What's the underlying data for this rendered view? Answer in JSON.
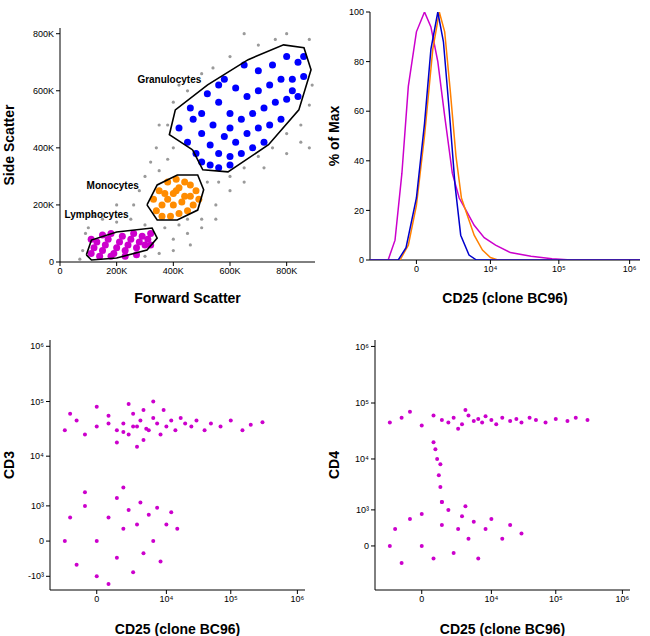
{
  "chart_data": [
    {
      "type": "scatter",
      "x_label": "Forward Scatter",
      "y_label": "Side Scatter",
      "xlim": [
        0,
        900000
      ],
      "ylim": [
        0,
        820000
      ],
      "xticks": [
        0,
        {
          "value": 200000,
          "label": "200K"
        },
        {
          "value": 400000,
          "label": "400K"
        },
        {
          "value": 600000,
          "label": "600K"
        },
        {
          "value": 800000,
          "label": "800K"
        }
      ],
      "yticks": [
        0,
        {
          "value": 200000,
          "label": "200K"
        },
        {
          "value": 400000,
          "label": "400K"
        },
        {
          "value": 600000,
          "label": "600K"
        },
        {
          "value": 800000,
          "label": "800K"
        }
      ],
      "series": [
        {
          "color": "#9a9a9a",
          "x": [
            70000,
            80000,
            100000,
            150000,
            200000,
            250000,
            260000,
            280000,
            300000,
            320000,
            350000,
            380000,
            400000,
            300000,
            370000,
            420000,
            450000,
            500000,
            550000,
            520000,
            560000,
            600000,
            650000,
            700000,
            750000,
            800000,
            850000,
            880000,
            890000,
            880000,
            800000,
            700000,
            600000,
            500000,
            450000,
            400000,
            350000,
            340000,
            380000,
            600000,
            650000,
            720000,
            800000,
            850000,
            200000,
            120000,
            90000,
            400000,
            450000,
            500000,
            550000,
            350000,
            400000,
            460000,
            540000,
            420000,
            880000,
            760000,
            650000,
            300000
          ],
          "y": [
            10000,
            40000,
            120000,
            150000,
            140000,
            150000,
            200000,
            250000,
            300000,
            350000,
            320000,
            360000,
            400000,
            130000,
            120000,
            130000,
            150000,
            150000,
            200000,
            280000,
            280000,
            300000,
            330000,
            370000,
            400000,
            450000,
            480000,
            550000,
            620000,
            780000,
            800000,
            760000,
            720000,
            660000,
            600000,
            560000,
            480000,
            400000,
            480000,
            250000,
            280000,
            330000,
            380000,
            420000,
            200000,
            160000,
            100000,
            80000,
            100000,
            120000,
            150000,
            30000,
            40000,
            60000,
            680000,
            620000,
            400000,
            780000,
            800000,
            20000
          ]
        },
        {
          "name": "Granulocytes",
          "color": "#0000ff",
          "x": [
            420000,
            450000,
            480000,
            500000,
            530000,
            560000,
            600000,
            470000,
            500000,
            530000,
            560000,
            600000,
            640000,
            680000,
            720000,
            460000,
            500000,
            540000,
            580000,
            620000,
            660000,
            700000,
            740000,
            780000,
            520000,
            560000,
            600000,
            640000,
            680000,
            720000,
            760000,
            800000,
            840000,
            580000,
            620000,
            660000,
            700000,
            740000,
            780000,
            820000,
            860000,
            650000,
            700000,
            750000,
            800000,
            840000,
            860000,
            600000,
            560000,
            820000
          ],
          "y": [
            470000,
            420000,
            380000,
            350000,
            340000,
            330000,
            340000,
            500000,
            450000,
            410000,
            380000,
            370000,
            380000,
            400000,
            420000,
            540000,
            520000,
            480000,
            440000,
            420000,
            450000,
            470000,
            480000,
            500000,
            590000,
            560000,
            520000,
            500000,
            520000,
            540000,
            560000,
            570000,
            580000,
            640000,
            610000,
            580000,
            600000,
            620000,
            640000,
            640000,
            650000,
            690000,
            670000,
            690000,
            720000,
            700000,
            720000,
            470000,
            620000,
            600000
          ],
          "gate": {
            "x": [
              468000,
              386000,
              407000,
              521000,
              664000,
              789000,
              861000,
              886000,
              843000,
              736000,
              593000,
              504000
            ],
            "y": [
              393000,
              446000,
              533000,
              621000,
              709000,
              761000,
              751000,
              674000,
              533000,
              411000,
              316000,
              323000
            ]
          },
          "label_x": 386000,
          "label_y": 639000
        },
        {
          "name": "Monocytes",
          "color": "#ff8c00",
          "x": [
            340000,
            360000,
            380000,
            400000,
            420000,
            440000,
            460000,
            480000,
            490000,
            470000,
            450000,
            420000,
            390000,
            360000,
            330000,
            350000,
            380000,
            410000,
            440000,
            400000,
            430000,
            460000,
            370000,
            410000
          ],
          "y": [
            180000,
            200000,
            220000,
            240000,
            260000,
            280000,
            270000,
            250000,
            220000,
            200000,
            180000,
            170000,
            160000,
            160000,
            220000,
            250000,
            280000,
            290000,
            230000,
            200000,
            210000,
            230000,
            240000,
            250000
          ],
          "gate": {
            "x": [
              307000,
              343000,
              414000,
              486000,
              507000,
              486000,
              414000,
              343000
            ],
            "y": [
              200000,
              270000,
              305000,
              305000,
              253000,
              182000,
              147000,
              147000
            ]
          },
          "label_x": 186000,
          "label_y": 270000
        },
        {
          "name": "Lymphocytes",
          "color": "#cc00cc",
          "x": [
            110000,
            120000,
            130000,
            150000,
            160000,
            170000,
            180000,
            190000,
            200000,
            210000,
            220000,
            230000,
            240000,
            250000,
            260000,
            270000,
            280000,
            290000,
            300000,
            310000,
            320000,
            140000,
            180000,
            230000,
            270000,
            320000,
            110000,
            150000
          ],
          "y": [
            30000,
            50000,
            70000,
            40000,
            60000,
            80000,
            100000,
            30000,
            50000,
            70000,
            90000,
            40000,
            60000,
            80000,
            100000,
            50000,
            70000,
            90000,
            60000,
            80000,
            100000,
            20000,
            20000,
            20000,
            25000,
            60000,
            80000,
            95000
          ],
          "gate": {
            "x": [
              93000,
              111000,
              200000,
              325000,
              343000,
              307000,
              200000,
              111000
            ],
            "y": [
              25000,
              77000,
              105000,
              119000,
              84000,
              42000,
              14000,
              7000
            ]
          },
          "label_x": 129000,
          "label_y": 165000
        }
      ]
    },
    {
      "type": "line",
      "x_label": "CD25 (clone BC96)",
      "y_label": "% of Max",
      "log": "x",
      "xlim": [
        -3500,
        1400000
      ],
      "ylim": [
        0,
        100
      ],
      "xticks": [
        0,
        {
          "value": 10000,
          "label": "10⁴"
        },
        {
          "value": 100000,
          "label": "10⁵"
        },
        {
          "value": 1000000,
          "label": "10⁶"
        }
      ],
      "yticks": [
        0,
        20,
        40,
        60,
        80,
        100
      ],
      "series": [
        {
          "color": "#cc00cc",
          "x": [
            -3500,
            -1500,
            -1000,
            -600,
            -300,
            0,
            300,
            600,
            1000,
            1500,
            2200,
            3000,
            4000,
            5500,
            8000,
            12000,
            20000,
            40000,
            80000,
            150000,
            1400000
          ],
          "y": [
            0,
            0,
            8,
            35,
            70,
            92,
            100,
            94,
            80,
            58,
            35,
            25,
            20,
            14,
            9,
            6,
            3,
            1.5,
            0.5,
            0,
            0
          ]
        },
        {
          "color": "#ff8000",
          "x": [
            -3500,
            -700,
            -300,
            0,
            300,
            700,
            1100,
            1500,
            2000,
            2600,
            3300,
            4200,
            5500,
            7500,
            10000,
            13000,
            1400000
          ],
          "y": [
            0,
            0,
            6,
            22,
            50,
            85,
            100,
            92,
            68,
            42,
            25,
            18,
            10,
            4,
            1,
            0,
            0
          ]
        },
        {
          "color": "#0000cc",
          "x": [
            -3500,
            -800,
            -400,
            0,
            300,
            600,
            1000,
            1400,
            1900,
            2500,
            3200,
            4500,
            6000,
            1400000
          ],
          "y": [
            0,
            0,
            5,
            25,
            55,
            85,
            100,
            88,
            60,
            30,
            10,
            2,
            0,
            0
          ]
        }
      ]
    },
    {
      "type": "scatter",
      "x_label": "CD25 (clone BC96)",
      "y_label": "CD3",
      "log": true,
      "xlim": [
        -4000,
        1300000
      ],
      "ylim": [
        -2000,
        1300000
      ],
      "xticks": [
        0,
        {
          "value": 10000,
          "label": "10⁴"
        },
        {
          "value": 100000,
          "label": "10⁵"
        },
        {
          "value": 1000000,
          "label": "10⁶"
        }
      ],
      "yticks": [
        {
          "value": -1000,
          "label": "-10³"
        },
        0,
        {
          "value": 1000,
          "label": "10³"
        },
        {
          "value": 10000,
          "label": "10⁴"
        },
        {
          "value": 100000,
          "label": "10⁵"
        },
        {
          "value": 1000000,
          "label": "10⁶"
        }
      ],
      "series": [
        {
          "color": "#cc00cc",
          "x": [
            -2000,
            -1000,
            -500,
            0,
            500,
            1000,
            1500,
            2000,
            2500,
            3000,
            3500,
            4000,
            5000,
            6000,
            7000,
            8000,
            9000,
            10000,
            12000,
            14000,
            17000,
            20000,
            25000,
            30000,
            40000,
            50000,
            70000,
            100000,
            150000,
            200000,
            300000,
            -1500,
            0,
            2000,
            4000,
            1000,
            3000,
            6000,
            500,
            2500,
            4500,
            1500,
            -2000,
            -1500,
            -1000,
            -500,
            0,
            0,
            500,
            1000,
            1000,
            1500,
            2000,
            2500,
            3000,
            3500,
            4000,
            5000,
            6000,
            7000,
            8000,
            10000,
            12000,
            15000,
            -500,
            1500,
            500
          ],
          "y": [
            30000,
            45000,
            25000,
            35000,
            55000,
            30000,
            40000,
            25000,
            60000,
            35000,
            45000,
            20000,
            30000,
            50000,
            40000,
            25000,
            70000,
            35000,
            45000,
            30000,
            50000,
            40000,
            35000,
            45000,
            30000,
            40000,
            35000,
            45000,
            30000,
            38000,
            42000,
            60000,
            80000,
            90000,
            70000,
            18000,
            15000,
            100000,
            40000,
            35000,
            32000,
            28000,
            0,
            500,
            -500,
            1000,
            0,
            -1000,
            500,
            1500,
            -300,
            200,
            800,
            -800,
            300,
            1200,
            -200,
            600,
            0,
            900,
            -400,
            300,
            700,
            200,
            2000,
            2500,
            -1500
          ]
        }
      ]
    },
    {
      "type": "scatter",
      "x_label": "CD25 (clone BC96)",
      "y_label": "CD4",
      "log": true,
      "xlim": [
        -4000,
        1300000
      ],
      "ylim": [
        -1500,
        1300000
      ],
      "xticks": [
        0,
        {
          "value": 10000,
          "label": "10⁴"
        },
        {
          "value": 100000,
          "label": "10⁵"
        },
        {
          "value": 1000000,
          "label": "10⁶"
        }
      ],
      "yticks": [
        0,
        {
          "value": 1000,
          "label": "10³"
        },
        {
          "value": 10000,
          "label": "10⁴"
        },
        {
          "value": 100000,
          "label": "10⁵"
        },
        {
          "value": 1000000,
          "label": "10⁶"
        }
      ],
      "series": [
        {
          "color": "#cc00cc",
          "x": [
            -2000,
            -1000,
            0,
            500,
            1000,
            1500,
            2000,
            3000,
            4000,
            5000,
            6000,
            7000,
            8000,
            10000,
            12000,
            15000,
            20000,
            25000,
            30000,
            40000,
            50000,
            70000,
            100000,
            150000,
            200000,
            300000,
            -500,
            2500,
            3500,
            500,
            700,
            800,
            900,
            1000,
            600,
            900,
            -2000,
            -1500,
            -1000,
            -500,
            0,
            0,
            500,
            1000,
            1500,
            2000,
            2500,
            3000,
            4000,
            5000,
            6000,
            8000,
            10000,
            15000,
            20000,
            30000,
            1000,
            3500
          ],
          "y": [
            45000,
            55000,
            40000,
            60000,
            50000,
            45000,
            55000,
            42000,
            60000,
            48000,
            52000,
            45000,
            58000,
            50000,
            42000,
            55000,
            48000,
            52000,
            45000,
            55000,
            50000,
            45000,
            52000,
            48000,
            55000,
            50000,
            70000,
            35000,
            75000,
            20000,
            10000,
            5000,
            3000,
            1500,
            15000,
            8000,
            0,
            300,
            -300,
            600,
            0,
            800,
            -200,
            400,
            1000,
            -100,
            300,
            700,
            100,
            500,
            -200,
            300,
            600,
            100,
            400,
            200,
            1500,
            1200
          ]
        }
      ]
    }
  ]
}
